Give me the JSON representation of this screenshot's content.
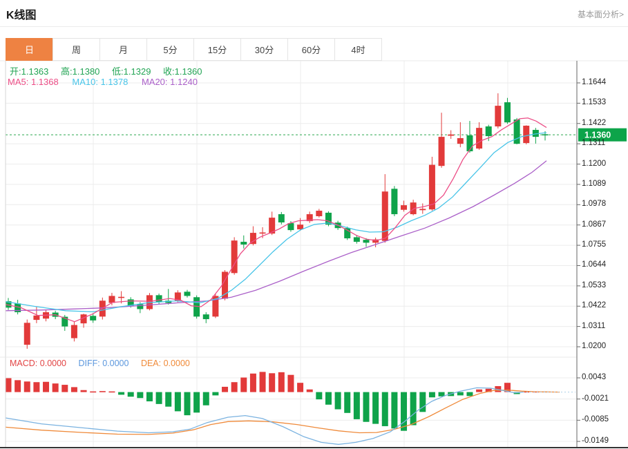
{
  "header": {
    "title": "K线图",
    "link_label": "基本面分析>"
  },
  "tabs": {
    "items": [
      {
        "label": "日",
        "selected": true
      },
      {
        "label": "周",
        "selected": false
      },
      {
        "label": "月",
        "selected": false
      },
      {
        "label": "5分",
        "selected": false
      },
      {
        "label": "15分",
        "selected": false
      },
      {
        "label": "30分",
        "selected": false
      },
      {
        "label": "60分",
        "selected": false
      },
      {
        "label": "4时",
        "selected": false
      }
    ],
    "selected_bg": "#ee8242"
  },
  "legend": {
    "ohlc": {
      "color": "#21a453",
      "items": [
        {
          "label": "开:",
          "value": "1.1363"
        },
        {
          "label": "高:",
          "value": "1.1380"
        },
        {
          "label": "低:",
          "value": "1.1329"
        },
        {
          "label": "收:",
          "value": "1.1360"
        }
      ]
    },
    "ma": {
      "items": [
        {
          "label": "MA5:",
          "value": "1.1368",
          "color": "#ec4d86"
        },
        {
          "label": "MA10:",
          "value": "1.1378",
          "color": "#47c4e8"
        },
        {
          "label": "MA20:",
          "value": "1.1240",
          "color": "#aa5fc8"
        }
      ]
    },
    "macd": {
      "items": [
        {
          "label": "MACD:",
          "value": "0.0000",
          "color": "#e24444"
        },
        {
          "label": "DIFF:",
          "value": "0.0000",
          "color": "#5b97dd"
        },
        {
          "label": "DEA:",
          "value": "0.0000",
          "color": "#f08a38"
        }
      ]
    }
  },
  "price_axis": {
    "ticks": [
      "1.1644",
      "1.1533",
      "1.1422",
      "1.1311",
      "1.1200",
      "1.1089",
      "1.0978",
      "1.0867",
      "1.0755",
      "1.0644",
      "1.0533",
      "1.0422",
      "1.0311",
      "1.0200"
    ],
    "current_label": "1.1360",
    "current_bg": "#0da44a"
  },
  "macd_axis": {
    "ticks": [
      "0.0043",
      "-0.0021",
      "-0.0085",
      "-0.0149"
    ]
  },
  "chart_data": {
    "type": "candlestick",
    "title": "K线图 (daily)",
    "legend_position": "top-left",
    "grid": true,
    "up_color": "#e23a3a",
    "down_color": "#0fa34a",
    "price_axis_range": [
      1.02,
      1.1644
    ],
    "macd_axis_range": [
      -0.0149,
      0.0043
    ],
    "current_price": 1.136,
    "candles": [
      [
        1.045,
        1.0468,
        1.0402,
        1.0415
      ],
      [
        1.0438,
        1.0458,
        1.0378,
        1.039
      ],
      [
        1.0212,
        1.035,
        1.019,
        1.0332
      ],
      [
        1.0348,
        1.042,
        1.033,
        1.0372
      ],
      [
        1.0355,
        1.0402,
        1.034,
        1.039
      ],
      [
        1.0388,
        1.0398,
        1.0352,
        1.0365
      ],
      [
        1.0365,
        1.0375,
        1.0288,
        1.0312
      ],
      [
        1.0248,
        1.0338,
        1.023,
        1.032
      ],
      [
        1.0329,
        1.0382,
        1.0305,
        1.0378
      ],
      [
        1.037,
        1.0385,
        1.0332,
        1.0345
      ],
      [
        1.0366,
        1.047,
        1.035,
        1.0453
      ],
      [
        1.0441,
        1.0496,
        1.0428,
        1.0479
      ],
      [
        1.0468,
        1.0505,
        1.0438,
        1.0474
      ],
      [
        1.046,
        1.0472,
        1.0415,
        1.0426
      ],
      [
        1.0434,
        1.0445,
        1.0385,
        1.0407
      ],
      [
        1.0407,
        1.0495,
        1.04,
        1.0483
      ],
      [
        1.0483,
        1.0492,
        1.0435,
        1.0445
      ],
      [
        1.0453,
        1.0517,
        1.0432,
        1.0441
      ],
      [
        1.0453,
        1.051,
        1.0445,
        1.0498
      ],
      [
        1.0502,
        1.0512,
        1.047,
        1.0479
      ],
      [
        1.0472,
        1.0482,
        1.0355,
        1.0366
      ],
      [
        1.0378,
        1.039,
        1.033,
        1.0352
      ],
      [
        1.0366,
        1.049,
        1.0358,
        1.0479
      ],
      [
        1.0464,
        1.062,
        1.0455,
        1.0611
      ],
      [
        1.0604,
        1.08,
        1.0595,
        1.0782
      ],
      [
        1.0775,
        1.081,
        1.0738,
        1.076
      ],
      [
        1.0763,
        1.086,
        1.0755,
        1.0824
      ],
      [
        1.082,
        1.0855,
        1.0795,
        1.0826
      ],
      [
        1.082,
        1.094,
        1.0812,
        1.0907
      ],
      [
        1.0926,
        1.0938,
        1.087,
        1.0881
      ],
      [
        1.0877,
        1.0888,
        1.083,
        1.0839
      ],
      [
        1.0843,
        1.0905,
        1.0835,
        1.0869
      ],
      [
        1.0888,
        1.094,
        1.0878,
        1.0926
      ],
      [
        1.0915,
        1.0955,
        1.0908,
        1.0945
      ],
      [
        1.0934,
        1.0942,
        1.086,
        1.0869
      ],
      [
        1.088,
        1.089,
        1.084,
        1.085
      ],
      [
        1.085,
        1.0858,
        1.0785,
        1.0794
      ],
      [
        1.08,
        1.0812,
        1.0765,
        1.0775
      ],
      [
        1.0786,
        1.0795,
        1.0748,
        1.077
      ],
      [
        1.077,
        1.0798,
        1.0745,
        1.0788
      ],
      [
        1.078,
        1.1145,
        1.077,
        1.105
      ],
      [
        1.1065,
        1.108,
        1.0915,
        1.0926
      ],
      [
        1.095,
        1.1,
        1.094,
        1.0975
      ],
      [
        1.0926,
        1.1005,
        1.092,
        1.099
      ],
      [
        1.0948,
        1.0985,
        1.0928,
        1.0955
      ],
      [
        1.0952,
        1.124,
        1.0945,
        1.1196
      ],
      [
        1.119,
        1.1481,
        1.118,
        1.1349
      ],
      [
        1.1355,
        1.1385,
        1.1338,
        1.1362
      ],
      [
        1.1311,
        1.1429,
        1.1292,
        1.1342
      ],
      [
        1.1357,
        1.1436,
        1.1262,
        1.127
      ],
      [
        1.1285,
        1.1429,
        1.1278,
        1.1398
      ],
      [
        1.1406,
        1.1415,
        1.1326,
        1.1353
      ],
      [
        1.1406,
        1.1587,
        1.1395,
        1.1519
      ],
      [
        1.1538,
        1.1562,
        1.142,
        1.1428
      ],
      [
        1.1444,
        1.1452,
        1.1308,
        1.1311
      ],
      [
        1.1315,
        1.1412,
        1.1308,
        1.141
      ],
      [
        1.1387,
        1.1398,
        1.1312,
        1.1349
      ],
      [
        1.1363,
        1.138,
        1.1329,
        1.136
      ]
    ],
    "ma5": [
      [
        8,
        1.0432
      ],
      [
        30,
        1.0415
      ],
      [
        55,
        1.0372
      ],
      [
        80,
        1.0376
      ],
      [
        108,
        1.0338
      ],
      [
        135,
        1.0382
      ],
      [
        163,
        1.0444
      ],
      [
        190,
        1.0452
      ],
      [
        218,
        1.045
      ],
      [
        246,
        1.0465
      ],
      [
        262,
        1.0455
      ],
      [
        277,
        1.0425
      ],
      [
        291,
        1.042
      ],
      [
        305,
        1.0458
      ],
      [
        320,
        1.053
      ],
      [
        334,
        1.062
      ],
      [
        348,
        1.071
      ],
      [
        362,
        1.0768
      ],
      [
        376,
        1.08
      ],
      [
        390,
        1.0822
      ],
      [
        404,
        1.0845
      ],
      [
        418,
        1.0875
      ],
      [
        432,
        1.089
      ],
      [
        446,
        1.0893
      ],
      [
        460,
        1.0896
      ],
      [
        474,
        1.089
      ],
      [
        488,
        1.0868
      ],
      [
        502,
        1.084
      ],
      [
        516,
        1.081
      ],
      [
        530,
        1.079
      ],
      [
        544,
        1.0782
      ],
      [
        558,
        1.0795
      ],
      [
        572,
        1.0852
      ],
      [
        586,
        1.092
      ],
      [
        600,
        1.0958
      ],
      [
        614,
        1.0968
      ],
      [
        628,
        1.0982
      ],
      [
        642,
        1.103
      ],
      [
        656,
        1.112
      ],
      [
        670,
        1.1225
      ],
      [
        684,
        1.13
      ],
      [
        698,
        1.133
      ],
      [
        712,
        1.135
      ],
      [
        726,
        1.1388
      ],
      [
        740,
        1.142
      ],
      [
        752,
        1.1448
      ],
      [
        764,
        1.1452
      ],
      [
        776,
        1.1435
      ],
      [
        791,
        1.14
      ]
    ],
    "ma10": [
      [
        8,
        1.0448
      ],
      [
        50,
        1.0422
      ],
      [
        95,
        1.0398
      ],
      [
        135,
        1.0392
      ],
      [
        175,
        1.042
      ],
      [
        215,
        1.0442
      ],
      [
        255,
        1.0452
      ],
      [
        290,
        1.0442
      ],
      [
        315,
        1.0465
      ],
      [
        335,
        1.051
      ],
      [
        355,
        1.057
      ],
      [
        375,
        1.0645
      ],
      [
        395,
        1.072
      ],
      [
        415,
        1.0788
      ],
      [
        435,
        1.084
      ],
      [
        455,
        1.087
      ],
      [
        475,
        1.0878
      ],
      [
        495,
        1.086
      ],
      [
        515,
        1.084
      ],
      [
        535,
        1.0828
      ],
      [
        555,
        1.083
      ],
      [
        575,
        1.0855
      ],
      [
        595,
        1.089
      ],
      [
        615,
        1.092
      ],
      [
        635,
        1.096
      ],
      [
        655,
        1.102
      ],
      [
        675,
        1.11
      ],
      [
        695,
        1.118
      ],
      [
        715,
        1.1262
      ],
      [
        735,
        1.1318
      ],
      [
        755,
        1.135
      ],
      [
        775,
        1.1365
      ],
      [
        791,
        1.1372
      ]
    ],
    "ma20": [
      [
        8,
        1.0398
      ],
      [
        60,
        1.0402
      ],
      [
        110,
        1.0408
      ],
      [
        160,
        1.0415
      ],
      [
        210,
        1.0428
      ],
      [
        260,
        1.0442
      ],
      [
        300,
        1.0452
      ],
      [
        335,
        1.0472
      ],
      [
        370,
        1.051
      ],
      [
        405,
        1.056
      ],
      [
        440,
        1.0615
      ],
      [
        475,
        1.0668
      ],
      [
        510,
        1.0718
      ],
      [
        545,
        1.0762
      ],
      [
        580,
        1.0806
      ],
      [
        615,
        1.085
      ],
      [
        650,
        1.0905
      ],
      [
        685,
        1.0968
      ],
      [
        715,
        1.103
      ],
      [
        745,
        1.1095
      ],
      [
        770,
        1.1155
      ],
      [
        791,
        1.1218
      ]
    ],
    "macd_histogram": [
      0.0042,
      0.0036,
      0.0032,
      0.003,
      0.0031,
      0.0026,
      0.0022,
      0.0015,
      0.0006,
      0.0002,
      0.0003,
      0.0002,
      -0.0008,
      -0.0014,
      -0.0018,
      -0.0028,
      -0.0036,
      -0.0044,
      -0.0058,
      -0.007,
      -0.0062,
      -0.004,
      -0.001,
      0.0016,
      0.003,
      0.0044,
      0.0056,
      0.0061,
      0.0057,
      0.006,
      0.0052,
      0.0028,
      0.0008,
      -0.0022,
      -0.0038,
      -0.0052,
      -0.0063,
      -0.0082,
      -0.009,
      -0.0096,
      -0.0103,
      -0.011,
      -0.0117,
      -0.01,
      -0.006,
      -0.0016,
      -0.0013,
      -0.0012,
      -0.001,
      -0.0012,
      0.0008,
      0.001,
      0.0018,
      0.0028,
      -0.0006,
      0.0002,
      0.0001,
      0.0
    ],
    "diff_line": [
      [
        8,
        -0.0078
      ],
      [
        60,
        -0.0096
      ],
      [
        120,
        -0.0108
      ],
      [
        170,
        -0.0118
      ],
      [
        215,
        -0.0123
      ],
      [
        250,
        -0.012
      ],
      [
        275,
        -0.0112
      ],
      [
        300,
        -0.0092
      ],
      [
        330,
        -0.0076
      ],
      [
        355,
        -0.0071
      ],
      [
        380,
        -0.008
      ],
      [
        410,
        -0.0105
      ],
      [
        440,
        -0.0135
      ],
      [
        465,
        -0.0152
      ],
      [
        490,
        -0.0158
      ],
      [
        515,
        -0.0152
      ],
      [
        540,
        -0.014
      ],
      [
        565,
        -0.012
      ],
      [
        585,
        -0.009
      ],
      [
        605,
        -0.0055
      ],
      [
        625,
        -0.0028
      ],
      [
        645,
        -0.001
      ],
      [
        665,
        0.0002
      ],
      [
        690,
        0.0013
      ],
      [
        710,
        0.0012
      ],
      [
        730,
        0.0004
      ],
      [
        745,
        -0.0002
      ],
      [
        757,
        0.0
      ]
    ],
    "dea_line": [
      [
        8,
        -0.0106
      ],
      [
        60,
        -0.0115
      ],
      [
        120,
        -0.0122
      ],
      [
        170,
        -0.0127
      ],
      [
        215,
        -0.0128
      ],
      [
        250,
        -0.0124
      ],
      [
        280,
        -0.0114
      ],
      [
        305,
        -0.0098
      ],
      [
        330,
        -0.0089
      ],
      [
        360,
        -0.0087
      ],
      [
        395,
        -0.009
      ],
      [
        430,
        -0.0098
      ],
      [
        460,
        -0.0108
      ],
      [
        490,
        -0.0117
      ],
      [
        520,
        -0.0123
      ],
      [
        545,
        -0.0122
      ],
      [
        570,
        -0.0113
      ],
      [
        595,
        -0.0098
      ],
      [
        620,
        -0.0075
      ],
      [
        645,
        -0.0048
      ],
      [
        670,
        -0.0022
      ],
      [
        695,
        -0.0004
      ],
      [
        715,
        0.0005
      ],
      [
        735,
        0.0006
      ],
      [
        755,
        0.0003
      ],
      [
        775,
        0.0001
      ],
      [
        810,
        0.0
      ]
    ],
    "diff_color": "#7ab2e0",
    "dea_color": "#ef8a3a",
    "ma5_color": "#ec4d86",
    "ma10_color": "#47c4e8",
    "ma20_color": "#aa5fc8"
  }
}
